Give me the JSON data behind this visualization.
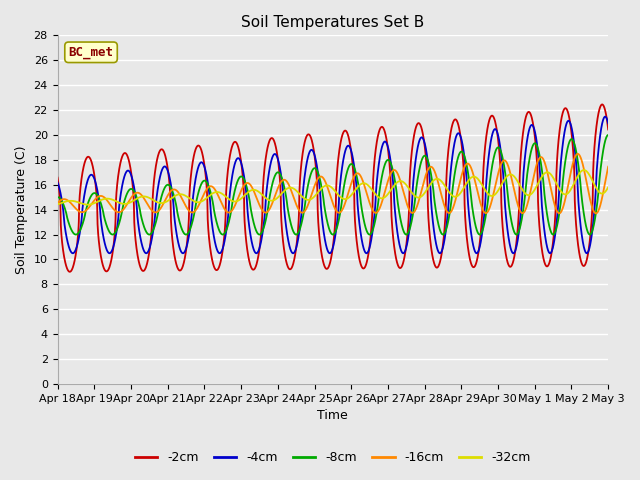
{
  "title": "Soil Temperatures Set B",
  "xlabel": "Time",
  "ylabel": "Soil Temperature (C)",
  "ylim": [
    0,
    28
  ],
  "yticks": [
    0,
    2,
    4,
    6,
    8,
    10,
    12,
    14,
    16,
    18,
    20,
    22,
    24,
    26,
    28
  ],
  "annotation": "BC_met",
  "series_colors": {
    "-2cm": "#cc0000",
    "-4cm": "#0000cc",
    "-8cm": "#00aa00",
    "-16cm": "#ff8800",
    "-32cm": "#dddd00"
  },
  "legend_order": [
    "-2cm",
    "-4cm",
    "-8cm",
    "-16cm",
    "-32cm"
  ],
  "bg_color": "#e8e8e8",
  "plot_bg_color": "#e8e8e8",
  "grid_color": "#ffffff",
  "x_tick_labels": [
    "Apr 18",
    "Apr 19",
    "Apr 20",
    "Apr 21",
    "Apr 22",
    "Apr 23",
    "Apr 24",
    "Apr 25",
    "Apr 26",
    "Apr 27",
    "Apr 28",
    "Apr 29",
    "Apr 30",
    "May 1",
    "May 2",
    "May 3"
  ]
}
